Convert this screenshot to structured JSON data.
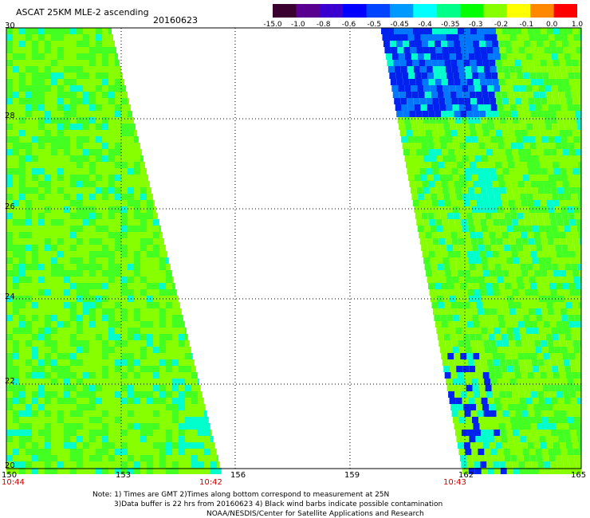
{
  "header": {
    "title": "ASCAT 25KM MLE-2 ascending",
    "date": "20160623"
  },
  "colorbar": {
    "labels": [
      "-15.0",
      "-1.0",
      "-0.8",
      "-0.6",
      "-0.5",
      "-0.45",
      "-0.4",
      "-0.35",
      "-0.3",
      "-0.2",
      "-0.1",
      "0.0",
      "1.0"
    ],
    "colors": [
      "#3a0030",
      "#5a0090",
      "#3a00d0",
      "#0000ff",
      "#0044ff",
      "#0099ff",
      "#00ffff",
      "#00ff88",
      "#00ff00",
      "#88ff00",
      "#ffff00",
      "#ff8800",
      "#ff0000"
    ]
  },
  "axes": {
    "y_labels": [
      "30",
      "28",
      "26",
      "24",
      "22",
      "20"
    ],
    "x_labels": [
      "150",
      "153",
      "156",
      "159",
      "162",
      "165"
    ],
    "times": [
      "10:44",
      "10:42",
      "10:43"
    ]
  },
  "notes": {
    "line1": "Note: 1) Times are GMT 2)Times along bottom correspond to measurement at 25N",
    "line2": "3)Data buffer is 22 hrs from 20160623 4) Black wind barbs indicate possible contamination",
    "line3": "NOAA/NESDIS/Center for Satellite Applications and Research"
  },
  "style": {
    "grid_color": "#000000",
    "base_green_a": "#88ff00",
    "base_green_b": "#44ff22",
    "cyan": "#00ffcc",
    "blue": "#0022ee",
    "time_color": "#d40000"
  }
}
